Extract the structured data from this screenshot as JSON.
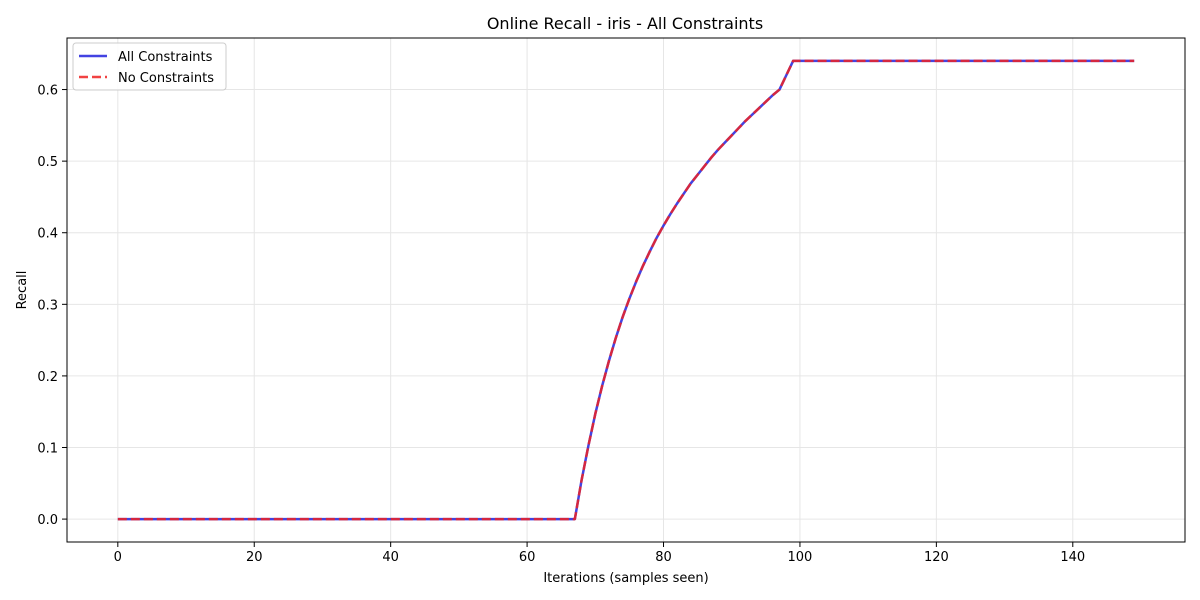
{
  "chart_data": {
    "type": "line",
    "title": "Online Recall - iris - All Constraints",
    "xlabel": "Iterations (samples seen)",
    "ylabel": "Recall",
    "xlim": [
      -7.45,
      156.45
    ],
    "ylim": [
      -0.032,
      0.672
    ],
    "xticks": [
      0,
      20,
      40,
      60,
      80,
      100,
      120,
      140
    ],
    "yticks": [
      0.0,
      0.1,
      0.2,
      0.3,
      0.4,
      0.5,
      0.6
    ],
    "xtick_labels": [
      "0",
      "20",
      "40",
      "60",
      "80",
      "100",
      "120",
      "140"
    ],
    "ytick_labels": [
      "0.0",
      "0.1",
      "0.2",
      "0.3",
      "0.4",
      "0.5",
      "0.6"
    ],
    "grid": true,
    "legend_position": "upper-left",
    "series": [
      {
        "name": "All Constraints",
        "color": "#2222dd",
        "style": "solid",
        "x": [
          0,
          67,
          68,
          69,
          70,
          71,
          72,
          73,
          74,
          75,
          76,
          77,
          78,
          79,
          80,
          81,
          82,
          83,
          84,
          85,
          86,
          87,
          88,
          89,
          90,
          91,
          92,
          93,
          94,
          95,
          96,
          97,
          98,
          99,
          149
        ],
        "y": [
          0.0,
          0.0,
          0.055,
          0.103,
          0.147,
          0.186,
          0.221,
          0.253,
          0.282,
          0.308,
          0.332,
          0.354,
          0.374,
          0.393,
          0.41,
          0.426,
          0.441,
          0.455,
          0.469,
          0.481,
          0.493,
          0.505,
          0.516,
          0.526,
          0.536,
          0.546,
          0.556,
          0.565,
          0.574,
          0.583,
          0.592,
          0.6,
          0.62,
          0.64,
          0.64
        ]
      },
      {
        "name": "No Constraints",
        "color": "#ee2222",
        "style": "dashed",
        "x": [
          0,
          67,
          68,
          69,
          70,
          71,
          72,
          73,
          74,
          75,
          76,
          77,
          78,
          79,
          80,
          81,
          82,
          83,
          84,
          85,
          86,
          87,
          88,
          89,
          90,
          91,
          92,
          93,
          94,
          95,
          96,
          97,
          98,
          99,
          149
        ],
        "y": [
          0.0,
          0.0,
          0.055,
          0.103,
          0.147,
          0.186,
          0.221,
          0.253,
          0.282,
          0.308,
          0.332,
          0.354,
          0.374,
          0.393,
          0.41,
          0.426,
          0.441,
          0.455,
          0.469,
          0.481,
          0.493,
          0.505,
          0.516,
          0.526,
          0.536,
          0.546,
          0.556,
          0.565,
          0.574,
          0.583,
          0.592,
          0.6,
          0.62,
          0.64,
          0.64
        ]
      }
    ]
  }
}
